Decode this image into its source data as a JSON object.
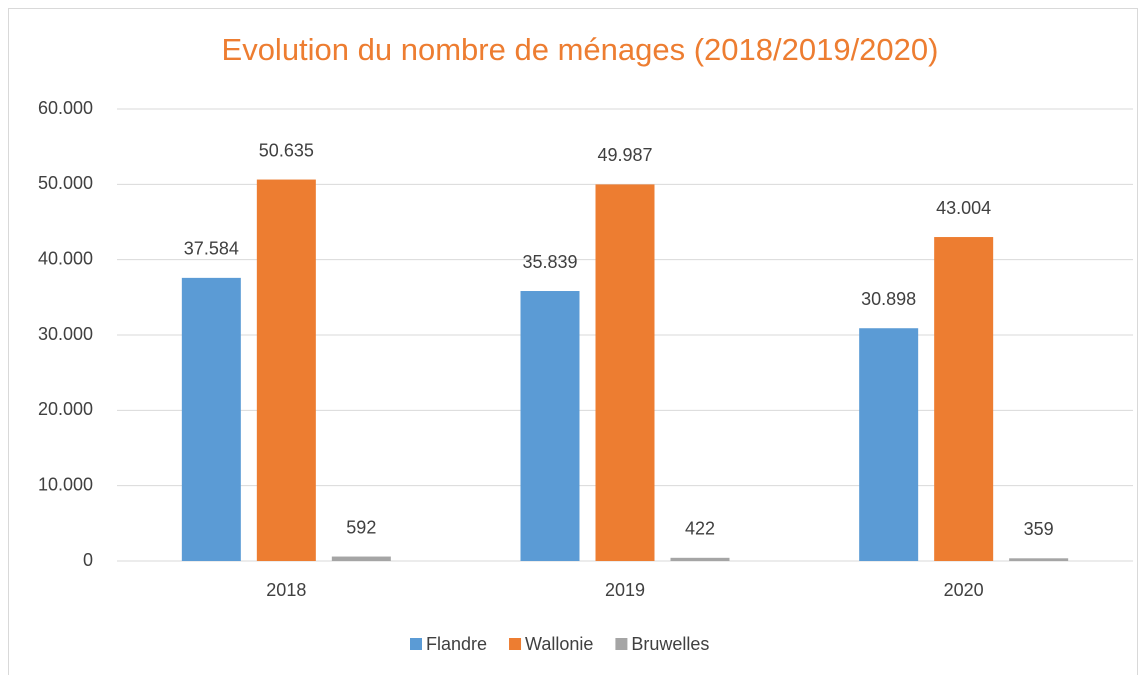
{
  "chart_data": {
    "type": "bar",
    "title": "Evolution du nombre de ménages (2018/2019/2020)",
    "categories": [
      "2018",
      "2019",
      "2020"
    ],
    "series": [
      {
        "name": "Flandre",
        "color": "#5b9bd5",
        "values": [
          37584,
          35839,
          30898
        ],
        "value_labels": [
          "37.584",
          "35.839",
          "30.898"
        ]
      },
      {
        "name": "Wallonie",
        "color": "#ed7d31",
        "values": [
          50635,
          49987,
          43004
        ],
        "value_labels": [
          "50.635",
          "49.987",
          "43.004"
        ]
      },
      {
        "name": "Bruwelles",
        "color": "#a5a5a5",
        "values": [
          592,
          422,
          359
        ]
      }
    ],
    "ylim": [
      0,
      60000
    ],
    "yticks": [
      0,
      {
        "value": 10000,
        "label": "10.000"
      },
      {
        "value": 20000,
        "label": "20.000"
      },
      {
        "value": 30000,
        "label": "30.000"
      },
      {
        "value": 40000,
        "label": "40.000"
      },
      {
        "value": 50000,
        "label": "50.000"
      },
      {
        "value": 60000,
        "label": "60.000"
      }
    ],
    "grid": true,
    "legend": "bottom"
  }
}
